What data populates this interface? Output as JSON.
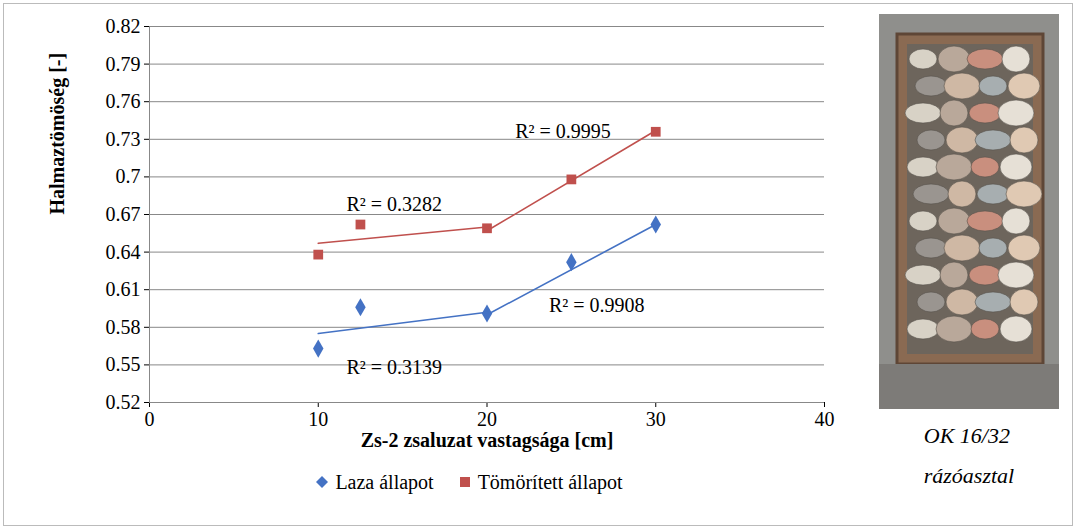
{
  "chart_data": {
    "type": "scatter",
    "x_label": "Zs-2 zsaluzat vastagsága [cm]",
    "y_label": "Halmaztömöség [-]",
    "xlim": [
      0,
      40
    ],
    "xticks": [
      0,
      10,
      20,
      30,
      40
    ],
    "ylim": [
      0.52,
      0.82
    ],
    "yticks": [
      0.52,
      0.55,
      0.58,
      0.61,
      0.64,
      0.67,
      0.7,
      0.73,
      0.76,
      0.79,
      0.82
    ],
    "grid": true,
    "legend": "bottom",
    "series": [
      {
        "name": "Laza állapot",
        "type": "scatter",
        "marker": "diamond",
        "color": "#4472c4",
        "x": [
          10,
          12.5,
          20,
          25,
          30
        ],
        "values": [
          0.563,
          0.596,
          0.591,
          0.632,
          0.662
        ]
      },
      {
        "name": "Tömörített állapot",
        "type": "scatter",
        "marker": "square",
        "color": "#c0504d",
        "x": [
          10,
          12.5,
          20,
          25,
          30
        ],
        "values": [
          0.638,
          0.662,
          0.659,
          0.698,
          0.736
        ]
      },
      {
        "type": "line",
        "color": "#4472c4",
        "x": [
          10,
          20
        ],
        "values": [
          0.575,
          0.592
        ]
      },
      {
        "type": "line",
        "color": "#4472c4",
        "x": [
          20,
          30
        ],
        "values": [
          0.59,
          0.662
        ]
      },
      {
        "type": "line",
        "color": "#c0504d",
        "x": [
          10,
          20
        ],
        "values": [
          0.647,
          0.66
        ]
      },
      {
        "type": "line",
        "color": "#c0504d",
        "x": [
          20,
          30
        ],
        "values": [
          0.657,
          0.737
        ]
      }
    ],
    "annotations": [
      {
        "text": "R² = 0.3282",
        "x": 14.5,
        "y": 0.678
      },
      {
        "text": "R² = 0.9995",
        "x": 24.5,
        "y": 0.736
      },
      {
        "text": "R² = 0.9908",
        "x": 26.5,
        "y": 0.597
      },
      {
        "text": "R² = 0.3139",
        "x": 14.5,
        "y": 0.548
      }
    ],
    "caption": [
      "OK 16/32",
      "rázóasztal"
    ]
  }
}
